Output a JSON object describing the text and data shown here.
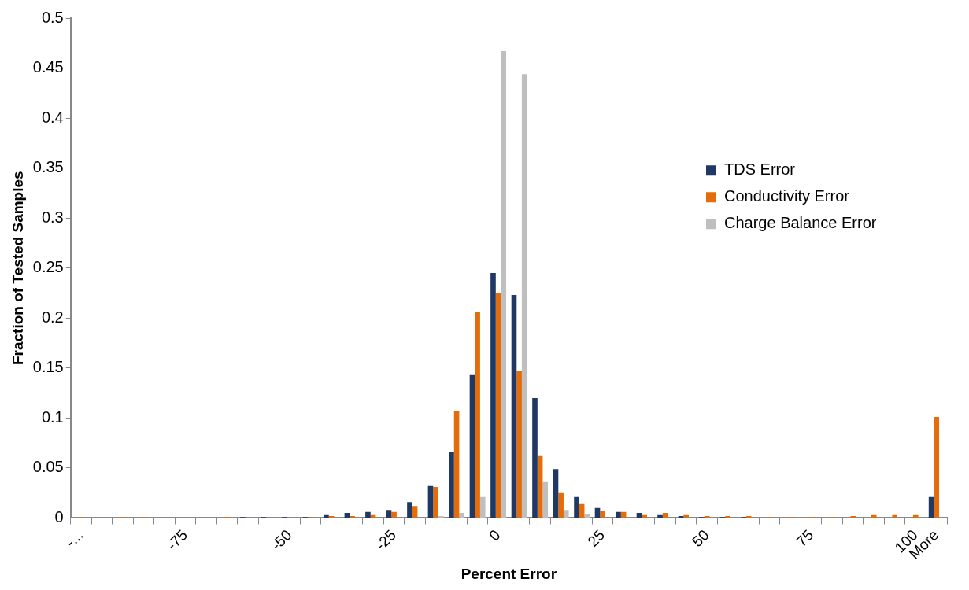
{
  "chart_data": {
    "type": "bar",
    "xlabel": "Percent Error",
    "ylabel": "Fraction of Tested Samples",
    "categories": [
      "-...",
      null,
      null,
      null,
      null,
      "-75",
      null,
      null,
      null,
      null,
      "-50",
      null,
      null,
      null,
      null,
      "-25",
      null,
      null,
      null,
      null,
      "0",
      null,
      null,
      null,
      null,
      "25",
      null,
      null,
      null,
      null,
      "50",
      null,
      null,
      null,
      null,
      "75",
      null,
      null,
      null,
      null,
      "100",
      "More"
    ],
    "series": [
      {
        "name": "TDS Error",
        "color": "#1f3864",
        "values": [
          0,
          0,
          0,
          0,
          0,
          0,
          0,
          0,
          0.001,
          0.001,
          0.001,
          0.001,
          0.003,
          0.005,
          0.006,
          0.008,
          0.016,
          0.032,
          0.066,
          0.143,
          0.245,
          0.223,
          0.12,
          0.049,
          0.021,
          0.01,
          0.006,
          0.005,
          0.003,
          0.002,
          0.001,
          0.001,
          0.001,
          0,
          0,
          0,
          0,
          0,
          0,
          0,
          0,
          0.021
        ]
      },
      {
        "name": "Conductivity Error",
        "color": "#e46c0a",
        "values": [
          0.001,
          0,
          0.001,
          0.001,
          0,
          0,
          0,
          0.001,
          0,
          0,
          0,
          0.001,
          0.002,
          0.002,
          0.003,
          0.006,
          0.012,
          0.031,
          0.107,
          0.206,
          0.225,
          0.147,
          0.062,
          0.025,
          0.014,
          0.007,
          0.006,
          0.003,
          0.005,
          0.003,
          0.002,
          0.002,
          0.002,
          0.001,
          0.001,
          0.001,
          0.001,
          0.002,
          0.003,
          0.003,
          0.003,
          0.101
        ]
      },
      {
        "name": "Charge Balance Error",
        "color": "#bfbfbf",
        "values": [
          0,
          0,
          0,
          0,
          0,
          0,
          0,
          0,
          0,
          0,
          0,
          0,
          0,
          0,
          0,
          0,
          null,
          0.002,
          0.005,
          0.021,
          0.467,
          0.444,
          0.036,
          0.008,
          0.004,
          null,
          0,
          0,
          0,
          0,
          0,
          0,
          0,
          0,
          0,
          0,
          0,
          0,
          0,
          0,
          0,
          0
        ]
      }
    ],
    "ylim": [
      0,
      0.5
    ],
    "yticks": [
      0,
      0.05,
      0.1,
      0.15,
      0.2,
      0.25,
      0.3,
      0.35,
      0.4,
      0.45,
      0.5
    ],
    "grid": false,
    "legend": "right"
  }
}
